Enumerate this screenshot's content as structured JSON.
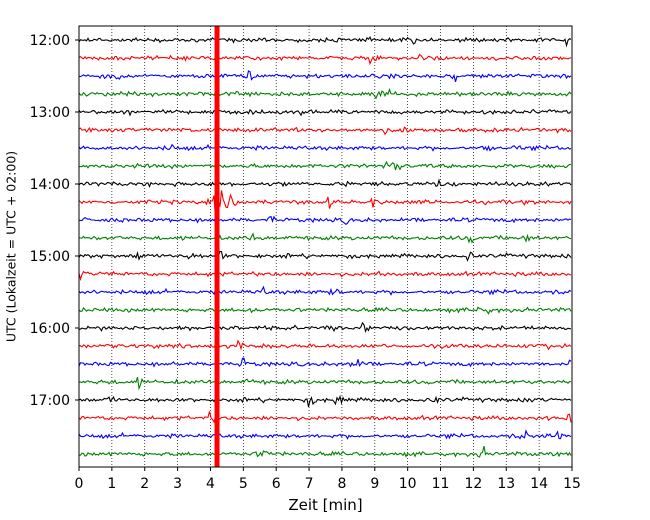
{
  "chart_data": {
    "type": "line",
    "title": "",
    "xlabel": "Zeit  [min]",
    "ylabel": "UTC (Lokalzeit = UTC + 02:00)",
    "xlim": [
      0,
      15
    ],
    "x_ticks": [
      "0",
      "1",
      "2",
      "3",
      "4",
      "5",
      "6",
      "7",
      "8",
      "9",
      "10",
      "11",
      "12",
      "13",
      "14",
      "15"
    ],
    "y_tick_labels": [
      "12:00",
      "13:00",
      "14:00",
      "15:00",
      "16:00",
      "17:00"
    ],
    "grid": "vertical dotted lines at each minute",
    "legend": "none",
    "trace_interval_minutes": 15,
    "trace_color_cycle": [
      "#000000",
      "#ff0000",
      "#0000ff",
      "#008000"
    ],
    "traces": [
      {
        "start": "12:00",
        "color": "#000000"
      },
      {
        "start": "12:15",
        "color": "#ff0000"
      },
      {
        "start": "12:30",
        "color": "#0000ff"
      },
      {
        "start": "12:45",
        "color": "#008000"
      },
      {
        "start": "13:00",
        "color": "#000000"
      },
      {
        "start": "13:15",
        "color": "#ff0000"
      },
      {
        "start": "13:30",
        "color": "#0000ff"
      },
      {
        "start": "13:45",
        "color": "#008000"
      },
      {
        "start": "14:00",
        "color": "#000000"
      },
      {
        "start": "14:15",
        "color": "#ff0000"
      },
      {
        "start": "14:30",
        "color": "#0000ff"
      },
      {
        "start": "14:45",
        "color": "#008000"
      },
      {
        "start": "15:00",
        "color": "#000000"
      },
      {
        "start": "15:15",
        "color": "#ff0000"
      },
      {
        "start": "15:30",
        "color": "#0000ff"
      },
      {
        "start": "15:45",
        "color": "#008000"
      },
      {
        "start": "16:00",
        "color": "#000000"
      },
      {
        "start": "16:15",
        "color": "#ff0000"
      },
      {
        "start": "16:30",
        "color": "#0000ff"
      },
      {
        "start": "16:45",
        "color": "#008000"
      },
      {
        "start": "17:00",
        "color": "#000000"
      },
      {
        "start": "17:15",
        "color": "#ff0000"
      },
      {
        "start": "17:30",
        "color": "#0000ff"
      },
      {
        "start": "17:45",
        "color": "#008000"
      }
    ],
    "events": [
      {
        "type": "saturated_spike",
        "start": "12:00",
        "end": "17:58",
        "minute": 4.2,
        "color": "#ff0000"
      },
      {
        "type": "earthquake_coda",
        "trace_start": "14:15",
        "minute_start": 4.1,
        "minute_end": 5.1,
        "color": "#ff0000"
      }
    ]
  }
}
